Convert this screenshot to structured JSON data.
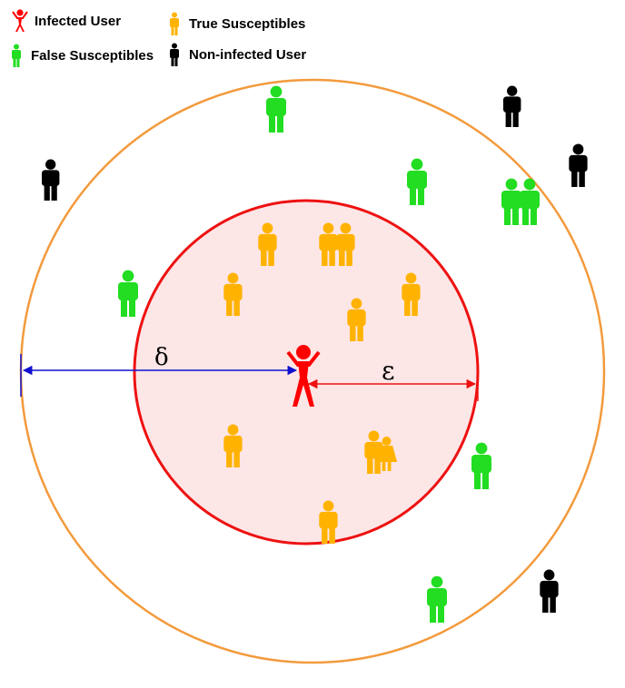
{
  "legend": {
    "infected": {
      "label": "Infected User",
      "color": "#ff0000"
    },
    "true_susceptible": {
      "label": "True Susceptibles",
      "color": "#ffb300"
    },
    "false_susceptible": {
      "label": "False Susceptibles",
      "color": "#22dd22"
    },
    "non_infected": {
      "label": "Non-infected User",
      "color": "#000000"
    }
  },
  "colors": {
    "inner_circle_stroke": "#ee1111",
    "inner_circle_fill": "#fde6e6",
    "outer_circle_stroke": "#f39a3c",
    "delta_line": "#1010d0",
    "epsilon_line": "#ee1111"
  },
  "labels": {
    "delta": "δ",
    "epsilon": "ε"
  },
  "icons": {
    "person": "person-icon",
    "infected_person": "infected-person-icon"
  }
}
